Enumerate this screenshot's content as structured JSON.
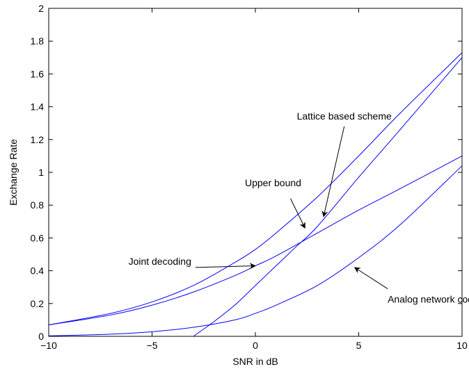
{
  "chart_data": {
    "type": "line",
    "title": "",
    "xlabel": "SNR in dB",
    "ylabel": "Exchange Rate",
    "xlim": [
      -10,
      10
    ],
    "ylim": [
      0,
      2
    ],
    "xticks": [
      -10,
      -5,
      0,
      5,
      10
    ],
    "xtick_labels": [
      "−10",
      "−5",
      "0",
      "5",
      "10"
    ],
    "yticks": [
      0,
      0.2,
      0.4,
      0.6,
      0.8,
      1,
      1.2,
      1.4,
      1.6,
      1.8,
      2
    ],
    "ytick_labels": [
      "0",
      "0.2",
      "0.4",
      "0.6",
      "0.8",
      "1",
      "1.2",
      "1.4",
      "1.6",
      "1.8",
      "2"
    ],
    "grid": false,
    "line_color": "#0000ff",
    "series": [
      {
        "key": "upper",
        "x": [
          -10,
          -7,
          -5,
          -3,
          -1,
          0,
          1,
          3,
          5,
          7,
          10
        ],
        "y": [
          0.07,
          0.14,
          0.21,
          0.31,
          0.45,
          0.53,
          0.63,
          0.85,
          1.1,
          1.36,
          1.73
        ]
      },
      {
        "key": "joint",
        "x": [
          -10,
          -7,
          -5,
          -3,
          -1,
          0,
          1,
          3,
          5,
          7,
          10
        ],
        "y": [
          0.07,
          0.13,
          0.19,
          0.27,
          0.37,
          0.43,
          0.49,
          0.63,
          0.77,
          0.9,
          1.1
        ]
      },
      {
        "key": "lattice",
        "x": [
          -3,
          -2,
          -1,
          0,
          1,
          2,
          3,
          5,
          7,
          10
        ],
        "y": [
          0.0,
          0.09,
          0.19,
          0.31,
          0.43,
          0.55,
          0.67,
          0.97,
          1.26,
          1.7
        ]
      },
      {
        "key": "analog",
        "x": [
          -10,
          -7,
          -5,
          -3,
          -1,
          0,
          1,
          3,
          5,
          7,
          10
        ],
        "y": [
          0.003,
          0.013,
          0.028,
          0.055,
          0.1,
          0.14,
          0.19,
          0.31,
          0.48,
          0.68,
          1.04
        ]
      }
    ],
    "annotations": [
      {
        "key": "lattice",
        "text": "Lattice based scheme",
        "tail": [
          4.3,
          1.28
        ],
        "head": [
          3.3,
          0.73
        ]
      },
      {
        "key": "upper",
        "text": "Upper bound",
        "tail": [
          1.7,
          0.84
        ],
        "head": [
          2.4,
          0.66
        ]
      },
      {
        "key": "joint",
        "text": "Joint decoding",
        "tail": [
          -2.9,
          0.42
        ],
        "head": [
          0.0,
          0.43
        ]
      },
      {
        "key": "analog",
        "text": "Analog network coding",
        "tail": [
          6.4,
          0.29
        ],
        "head": [
          4.8,
          0.42
        ]
      }
    ]
  }
}
